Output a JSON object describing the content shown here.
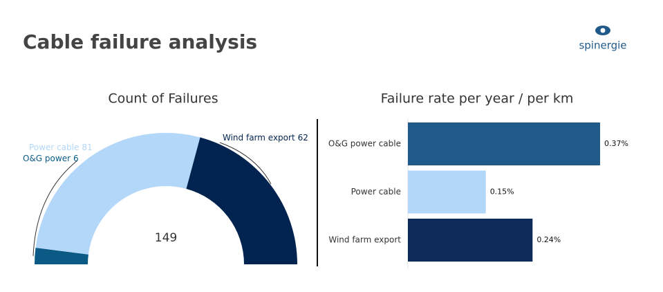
{
  "header": {
    "title": "Cable failure analysis",
    "logo": "spinergie"
  },
  "chart_data": [
    {
      "type": "half-donut",
      "title": "Count of Failures",
      "categories": [
        "O&G power",
        "Power cable",
        "Wind farm export"
      ],
      "values": [
        6,
        81,
        62
      ],
      "colors": [
        "#0b5a86",
        "#b3d7f8",
        "#00234f"
      ],
      "total": 149
    },
    {
      "type": "bar",
      "orientation": "horizontal",
      "title": "Failure rate per year / per km",
      "categories": [
        "O&G power cable",
        "Power cable",
        "Wind farm export"
      ],
      "values": [
        0.37,
        0.15,
        0.24
      ],
      "value_labels": [
        "0.37%",
        "0.15%",
        "0.24%"
      ],
      "colors": [
        "#1f5a8a",
        "#b3d7f8",
        "#0d2a59"
      ]
    }
  ]
}
